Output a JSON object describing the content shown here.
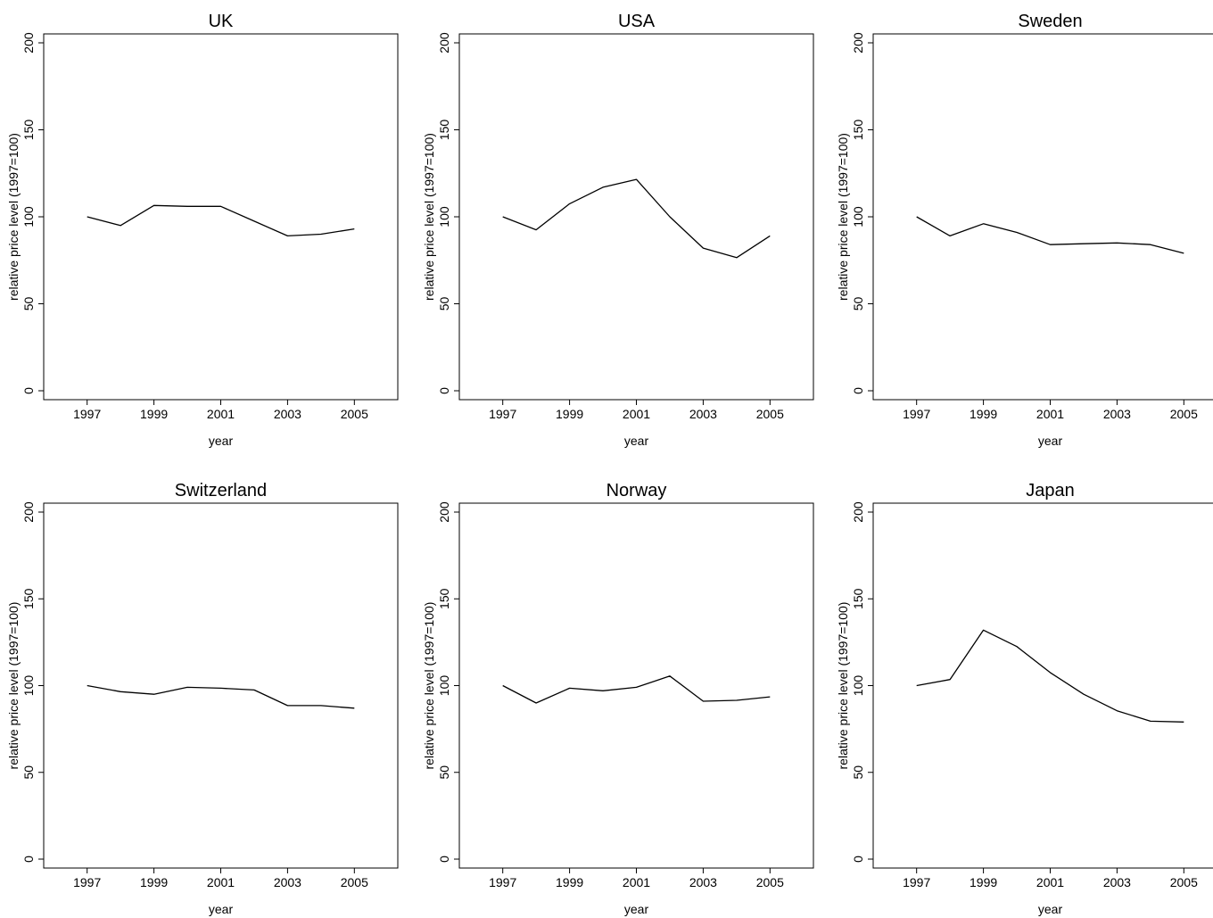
{
  "chart_data": [
    {
      "type": "line",
      "title": "UK",
      "xlabel": "year",
      "ylabel": "relative price level (1997=100)",
      "x": [
        1997,
        1998,
        1999,
        2000,
        2001,
        2002,
        2003,
        2004,
        2005
      ],
      "y": [
        100,
        95,
        106.5,
        106,
        106,
        97.5,
        89,
        90,
        93
      ],
      "xticks": [
        "1997",
        "1999",
        "2001",
        "2003",
        "2005"
      ],
      "yticks": [
        "0",
        "50",
        "100",
        "150",
        "200"
      ],
      "xlim": [
        1995.7,
        2006.3
      ],
      "ylim": [
        0,
        200
      ],
      "line_color": "#000000"
    },
    {
      "type": "line",
      "title": "USA",
      "xlabel": "year",
      "ylabel": "relative price level (1997=100)",
      "x": [
        1997,
        1998,
        1999,
        2000,
        2001,
        2002,
        2003,
        2004,
        2005
      ],
      "y": [
        100,
        92.5,
        107.5,
        117,
        121.5,
        100,
        82,
        76.5,
        89
      ],
      "xticks": [
        "1997",
        "1999",
        "2001",
        "2003",
        "2005"
      ],
      "yticks": [
        "0",
        "50",
        "100",
        "150",
        "200"
      ],
      "xlim": [
        1995.7,
        2006.3
      ],
      "ylim": [
        0,
        200
      ],
      "line_color": "#000000"
    },
    {
      "type": "line",
      "title": "Sweden",
      "xlabel": "year",
      "ylabel": "relative price level (1997=100)",
      "x": [
        1997,
        1998,
        1999,
        2000,
        2001,
        2002,
        2003,
        2004,
        2005
      ],
      "y": [
        100,
        89,
        96,
        91,
        84,
        84.5,
        85,
        84,
        79
      ],
      "xticks": [
        "1997",
        "1999",
        "2001",
        "2003",
        "2005"
      ],
      "yticks": [
        "0",
        "50",
        "100",
        "150",
        "200"
      ],
      "xlim": [
        1995.7,
        2006.3
      ],
      "ylim": [
        0,
        200
      ],
      "line_color": "#000000"
    },
    {
      "type": "line",
      "title": "Switzerland",
      "xlabel": "year",
      "ylabel": "relative price level (1997=100)",
      "x": [
        1997,
        1998,
        1999,
        2000,
        2001,
        2002,
        2003,
        2004,
        2005
      ],
      "y": [
        100,
        96.5,
        95,
        99,
        98.5,
        97.5,
        88.5,
        88.5,
        87
      ],
      "xticks": [
        "1997",
        "1999",
        "2001",
        "2003",
        "2005"
      ],
      "yticks": [
        "0",
        "50",
        "100",
        "150",
        "200"
      ],
      "xlim": [
        1995.7,
        2006.3
      ],
      "ylim": [
        0,
        200
      ],
      "line_color": "#000000"
    },
    {
      "type": "line",
      "title": "Norway",
      "xlabel": "year",
      "ylabel": "relative price level (1997=100)",
      "x": [
        1997,
        1998,
        1999,
        2000,
        2001,
        2002,
        2003,
        2004,
        2005
      ],
      "y": [
        100,
        90,
        98.5,
        97,
        99,
        105.5,
        91,
        91.5,
        93.5
      ],
      "xticks": [
        "1997",
        "1999",
        "2001",
        "2003",
        "2005"
      ],
      "yticks": [
        "0",
        "50",
        "100",
        "150",
        "200"
      ],
      "xlim": [
        1995.7,
        2006.3
      ],
      "ylim": [
        0,
        200
      ],
      "line_color": "#000000"
    },
    {
      "type": "line",
      "title": "Japan",
      "xlabel": "year",
      "ylabel": "relative price level (1997=100)",
      "x": [
        1997,
        1998,
        1999,
        2000,
        2001,
        2002,
        2003,
        2004,
        2005
      ],
      "y": [
        100,
        103.5,
        132,
        122.5,
        107.5,
        95,
        85.5,
        79.5,
        79
      ],
      "xticks": [
        "1997",
        "1999",
        "2001",
        "2003",
        "2005"
      ],
      "yticks": [
        "0",
        "50",
        "100",
        "150",
        "200"
      ],
      "xlim": [
        1995.7,
        2006.3
      ],
      "ylim": [
        0,
        200
      ],
      "line_color": "#000000"
    }
  ]
}
